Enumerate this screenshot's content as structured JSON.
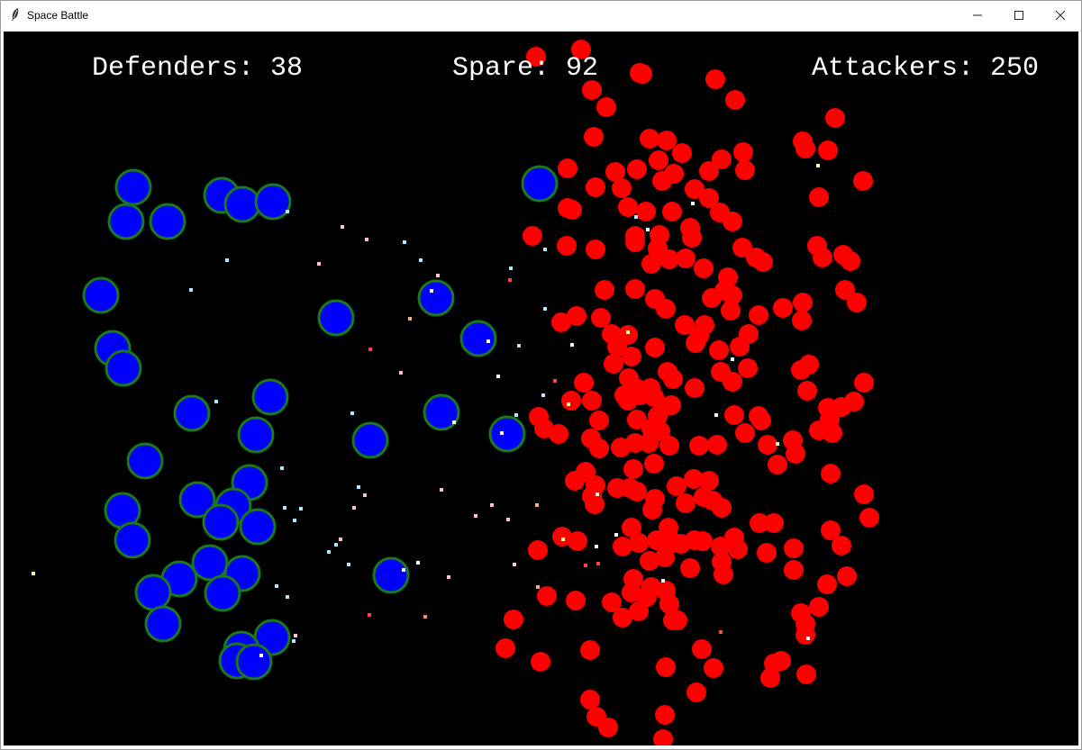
{
  "window": {
    "title": "Space Battle",
    "icons": {
      "app": "feather-icon",
      "minimize": "minimize-icon",
      "maximize": "maximize-icon",
      "close": "close-icon"
    }
  },
  "hud": {
    "defenders_label": "Defenders:",
    "defenders_value": "38",
    "spare_label": "Spare:",
    "spare_value": "92",
    "attackers_label": "Attackers:",
    "attackers_value": "250"
  },
  "colors": {
    "background": "#000000",
    "defender_fill": "#0000ff",
    "defender_ring": "#1a7a1a",
    "attacker_fill": "#ff0000",
    "hud_text": "#ffffff"
  }
}
